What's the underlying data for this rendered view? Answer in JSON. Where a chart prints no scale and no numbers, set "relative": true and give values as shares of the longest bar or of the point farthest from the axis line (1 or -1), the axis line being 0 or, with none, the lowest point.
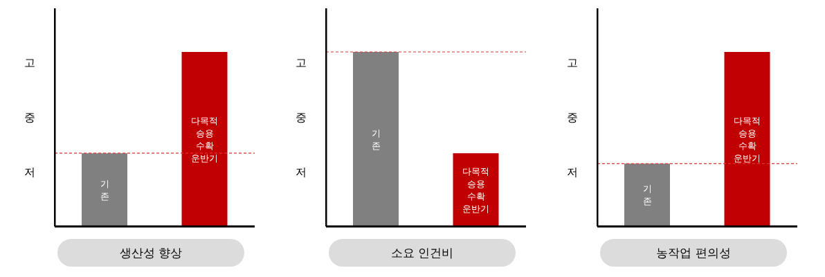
{
  "chart_data": [
    {
      "type": "bar",
      "title": "생산성 향상",
      "relative": true,
      "categories": [
        "기존",
        "다목적 승용 수확 운반기"
      ],
      "values": [
        0.42,
        1
      ],
      "colors": [
        "#808080",
        "#c00000"
      ],
      "annotations": [
        "고",
        "중",
        "저"
      ],
      "ref_lines": [
        {
          "axis": "y",
          "value": 0.42,
          "color": "#e03030",
          "line_style": "dashed"
        }
      ]
    },
    {
      "type": "bar",
      "title": "소요 인건비",
      "relative": true,
      "categories": [
        "기존",
        "다목적 승용 수확 운반기"
      ],
      "values": [
        1,
        0.42
      ],
      "colors": [
        "#808080",
        "#c00000"
      ],
      "annotations": [
        "고",
        "중",
        "저"
      ],
      "ref_lines": [
        {
          "axis": "y",
          "value": 1,
          "color": "#e03030",
          "line_style": "dashed"
        }
      ]
    },
    {
      "type": "bar",
      "title": "농작업 편의성",
      "relative": true,
      "categories": [
        "기존",
        "다목적 승용 수확 운반기"
      ],
      "values": [
        0.36,
        1
      ],
      "colors": [
        "#808080",
        "#c00000"
      ],
      "annotations": [
        "고",
        "중",
        "저"
      ],
      "ref_lines": [
        {
          "axis": "y",
          "value": 0.36,
          "color": "#e03030",
          "line_style": "dashed"
        }
      ]
    }
  ]
}
